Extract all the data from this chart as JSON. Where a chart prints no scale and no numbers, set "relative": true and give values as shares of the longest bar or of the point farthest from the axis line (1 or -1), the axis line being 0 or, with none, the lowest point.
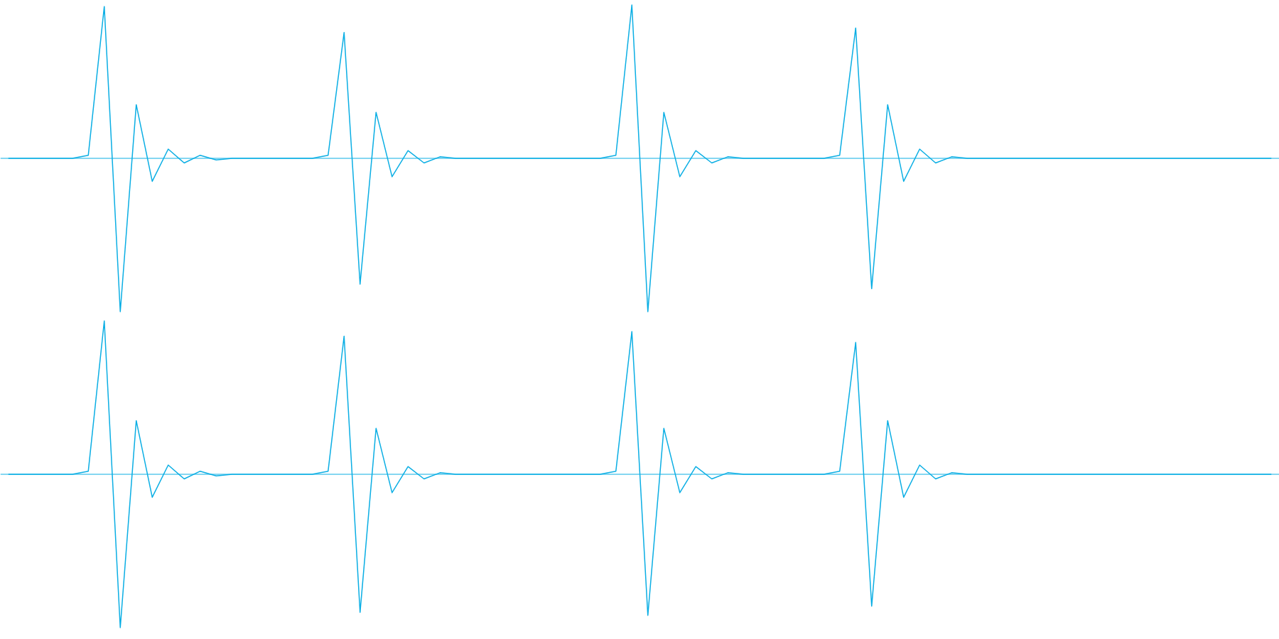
{
  "chart_data": [
    {
      "type": "line",
      "relative": true,
      "ref_lines": [
        {
          "axis": "y",
          "value": 0,
          "color": "#0aaee4"
        }
      ],
      "categories": [
        null,
        null,
        null,
        null,
        null,
        null,
        null,
        null,
        null,
        null,
        null,
        null,
        null,
        null,
        null,
        null,
        null,
        null,
        null,
        null,
        null,
        null,
        null,
        null,
        null,
        null,
        null,
        null,
        null,
        null,
        null,
        null,
        null,
        null,
        null,
        null,
        null,
        null,
        null,
        null,
        null,
        null,
        null,
        null,
        null,
        null,
        null,
        null,
        null,
        null,
        null,
        null,
        null,
        null,
        null,
        null,
        null,
        null,
        null,
        null,
        null,
        null,
        null,
        null,
        null,
        null,
        null,
        null,
        null,
        null,
        null,
        null,
        null,
        null,
        null,
        null,
        null,
        null,
        null,
        null
      ],
      "series": [
        {
          "color": "#0aaee4",
          "values": [
            0,
            0,
            0,
            0,
            0,
            0.02,
            0.99,
            -1,
            0.35,
            -0.15,
            0.06,
            -0.03,
            0.02,
            -0.01,
            0,
            0,
            0,
            0,
            0,
            0,
            0.02,
            0.82,
            -0.82,
            0.3,
            -0.12,
            0.05,
            -0.03,
            0.01,
            0,
            0,
            0,
            0,
            0,
            0,
            0,
            0,
            0,
            0,
            0.02,
            1,
            -1,
            0.3,
            -0.12,
            0.05,
            -0.03,
            0.01,
            0,
            0,
            0,
            0,
            0,
            0,
            0.02,
            0.85,
            -0.85,
            0.35,
            -0.15,
            0.06,
            -0.03,
            0.01,
            0,
            0,
            0,
            0,
            0,
            0,
            0,
            0,
            0,
            0,
            0,
            0,
            0,
            0,
            0,
            0,
            0,
            0,
            0,
            0
          ]
        }
      ]
    },
    {
      "type": "line",
      "relative": true,
      "ref_lines": [
        {
          "axis": "y",
          "value": 0,
          "color": "#0aaee4"
        }
      ],
      "categories": [
        null,
        null,
        null,
        null,
        null,
        null,
        null,
        null,
        null,
        null,
        null,
        null,
        null,
        null,
        null,
        null,
        null,
        null,
        null,
        null,
        null,
        null,
        null,
        null,
        null,
        null,
        null,
        null,
        null,
        null,
        null,
        null,
        null,
        null,
        null,
        null,
        null,
        null,
        null,
        null,
        null,
        null,
        null,
        null,
        null,
        null,
        null,
        null,
        null,
        null,
        null,
        null,
        null,
        null,
        null,
        null,
        null,
        null,
        null,
        null,
        null,
        null,
        null,
        null,
        null,
        null,
        null,
        null,
        null,
        null,
        null,
        null,
        null,
        null,
        null,
        null,
        null,
        null,
        null,
        null
      ],
      "series": [
        {
          "color": "#0aaee4",
          "values": [
            0,
            0,
            0,
            0,
            0,
            0.02,
            1,
            -1,
            0.35,
            -0.15,
            0.06,
            -0.03,
            0.02,
            -0.01,
            0,
            0,
            0,
            0,
            0,
            0,
            0.02,
            0.9,
            -0.9,
            0.3,
            -0.12,
            0.05,
            -0.03,
            0.01,
            0,
            0,
            0,
            0,
            0,
            0,
            0,
            0,
            0,
            0,
            0.02,
            0.93,
            -0.92,
            0.3,
            -0.12,
            0.05,
            -0.03,
            0.01,
            0,
            0,
            0,
            0,
            0,
            0,
            0.02,
            0.86,
            -0.86,
            0.35,
            -0.15,
            0.06,
            -0.03,
            0.01,
            0,
            0,
            0,
            0,
            0,
            0,
            0,
            0,
            0,
            0,
            0,
            0,
            0,
            0,
            0,
            0,
            0,
            0,
            0,
            0
          ]
        }
      ]
    }
  ]
}
